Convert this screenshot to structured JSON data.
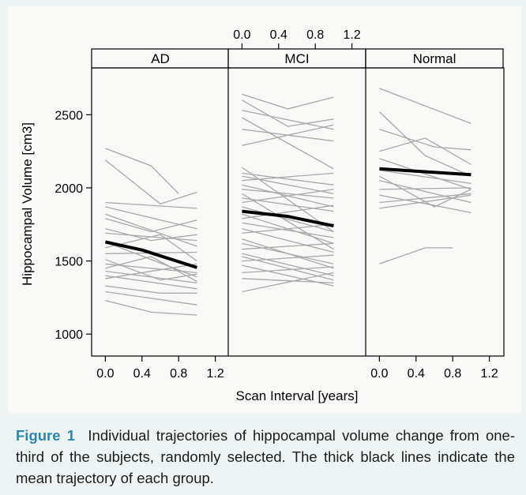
{
  "chart_data": {
    "type": "line",
    "layout": "trellis",
    "xlabel": "Scan Interval [years]",
    "ylabel": "Hippocampal Volume [cm3]",
    "xlim": [
      -0.15,
      1.35
    ],
    "ylim": [
      850,
      2820
    ],
    "x_ticks": [
      "0.0",
      "0.4",
      "0.8",
      "1.2"
    ],
    "y_ticks": [
      "1000",
      "1500",
      "2000",
      "2500"
    ],
    "x_tick_values": [
      0,
      0.4,
      0.8,
      1.2
    ],
    "y_tick_values": [
      1000,
      1500,
      2000,
      2500
    ],
    "colors": {
      "individual": "#a8a8a8",
      "mean": "#000000"
    },
    "panels": [
      {
        "name": "AD",
        "mean": [
          [
            0,
            1630
          ],
          [
            0.4,
            1575
          ],
          [
            1.0,
            1455
          ]
        ],
        "series": [
          [
            [
              0,
              2270
            ],
            [
              0.5,
              2150
            ],
            [
              0.8,
              1960
            ]
          ],
          [
            [
              0,
              2190
            ],
            [
              0.6,
              1890
            ],
            [
              1.0,
              1970
            ]
          ],
          [
            [
              0,
              1900
            ],
            [
              1.0,
              1860
            ]
          ],
          [
            [
              0,
              1870
            ],
            [
              1.0,
              1720
            ]
          ],
          [
            [
              0,
              1820
            ],
            [
              1.0,
              1600
            ]
          ],
          [
            [
              0,
              1790
            ],
            [
              0.5,
              1700
            ],
            [
              1.0,
              1780
            ]
          ],
          [
            [
              0,
              1720
            ],
            [
              0.5,
              1640
            ],
            [
              1.0,
              1680
            ]
          ],
          [
            [
              0,
              1690
            ],
            [
              1.0,
              1640
            ]
          ],
          [
            [
              0,
              1630
            ],
            [
              1.0,
              1390
            ]
          ],
          [
            [
              0,
              1590
            ],
            [
              0.6,
              1680
            ],
            [
              1.0,
              1500
            ]
          ],
          [
            [
              0,
              1550
            ],
            [
              1.0,
              1560
            ]
          ],
          [
            [
              0,
              1510
            ],
            [
              0.6,
              1370
            ],
            [
              1.0,
              1410
            ]
          ],
          [
            [
              0,
              1480
            ],
            [
              1.0,
              1420
            ]
          ],
          [
            [
              0,
              1450
            ],
            [
              0.5,
              1530
            ],
            [
              1.0,
              1360
            ]
          ],
          [
            [
              0,
              1430
            ],
            [
              1.0,
              1350
            ]
          ],
          [
            [
              0,
              1400
            ],
            [
              1.0,
              1310
            ]
          ],
          [
            [
              0,
              1380
            ],
            [
              1.0,
              1480
            ]
          ],
          [
            [
              0,
              1330
            ],
            [
              0.6,
              1280
            ],
            [
              1.0,
              1280
            ]
          ],
          [
            [
              0,
              1290
            ],
            [
              1.0,
              1200
            ]
          ],
          [
            [
              0,
              1230
            ],
            [
              0.5,
              1150
            ],
            [
              1.0,
              1130
            ]
          ]
        ]
      },
      {
        "name": "MCI",
        "mean": [
          [
            0,
            1840
          ],
          [
            0.5,
            1805
          ],
          [
            1.0,
            1740
          ]
        ],
        "series": [
          [
            [
              0,
              2640
            ],
            [
              0.5,
              2540
            ],
            [
              1.0,
              2620
            ]
          ],
          [
            [
              0,
              2600
            ],
            [
              0.5,
              2420
            ],
            [
              1.0,
              2470
            ]
          ],
          [
            [
              0,
              2530
            ],
            [
              1.0,
              2400
            ]
          ],
          [
            [
              0,
              2480
            ],
            [
              1.0,
              2130
            ]
          ],
          [
            [
              0,
              2400
            ],
            [
              1.0,
              2320
            ]
          ],
          [
            [
              0,
              2290
            ],
            [
              1.0,
              2430
            ]
          ],
          [
            [
              0,
              2140
            ],
            [
              1.0,
              1700
            ]
          ],
          [
            [
              0,
              2100
            ],
            [
              1.0,
              2020
            ]
          ],
          [
            [
              0,
              2080
            ],
            [
              1.0,
              1960
            ]
          ],
          [
            [
              0,
              2050
            ],
            [
              1.0,
              2100
            ]
          ],
          [
            [
              0,
              2020
            ],
            [
              1.0,
              1870
            ]
          ],
          [
            [
              0,
              1990
            ],
            [
              1.0,
              1930
            ]
          ],
          [
            [
              0,
              1960
            ],
            [
              1.0,
              1580
            ]
          ],
          [
            [
              0,
              1930
            ],
            [
              1.0,
              1840
            ]
          ],
          [
            [
              0,
              1900
            ],
            [
              1.0,
              1990
            ]
          ],
          [
            [
              0,
              1870
            ],
            [
              1.0,
              1700
            ]
          ],
          [
            [
              0,
              1820
            ],
            [
              1.0,
              1620
            ]
          ],
          [
            [
              0,
              1790
            ],
            [
              1.0,
              1880
            ]
          ],
          [
            [
              0,
              1760
            ],
            [
              1.0,
              1660
            ]
          ],
          [
            [
              0,
              1720
            ],
            [
              1.0,
              1560
            ]
          ],
          [
            [
              0,
              1690
            ],
            [
              1.0,
              1750
            ]
          ],
          [
            [
              0,
              1650
            ],
            [
              1.0,
              1450
            ]
          ],
          [
            [
              0,
              1620
            ],
            [
              1.0,
              1480
            ]
          ],
          [
            [
              0,
              1580
            ],
            [
              1.0,
              1620
            ]
          ],
          [
            [
              0,
              1550
            ],
            [
              1.0,
              1400
            ]
          ],
          [
            [
              0,
              1530
            ],
            [
              1.0,
              1370
            ]
          ],
          [
            [
              0,
              1500
            ],
            [
              1.0,
              1540
            ]
          ],
          [
            [
              0,
              1470
            ],
            [
              1.0,
              1330
            ]
          ],
          [
            [
              0,
              1420
            ],
            [
              1.0,
              1460
            ]
          ],
          [
            [
              0,
              1380
            ],
            [
              1.0,
              1350
            ]
          ],
          [
            [
              0,
              1290
            ],
            [
              1.0,
              1420
            ]
          ]
        ]
      },
      {
        "name": "Normal",
        "mean": [
          [
            0,
            2130
          ],
          [
            1.0,
            2090
          ]
        ],
        "series": [
          [
            [
              0,
              2680
            ],
            [
              1.0,
              2440
            ]
          ],
          [
            [
              0,
              2520
            ],
            [
              0.5,
              2220
            ],
            [
              1.0,
              2080
            ]
          ],
          [
            [
              0,
              2400
            ],
            [
              0.6,
              2280
            ],
            [
              1.0,
              2260
            ]
          ],
          [
            [
              0,
              2250
            ],
            [
              0.5,
              2340
            ],
            [
              1.0,
              2160
            ]
          ],
          [
            [
              0,
              2200
            ],
            [
              1.0,
              1990
            ]
          ],
          [
            [
              0,
              2120
            ],
            [
              1.0,
              2030
            ]
          ],
          [
            [
              0,
              2080
            ],
            [
              0.6,
              1870
            ],
            [
              1.0,
              1990
            ]
          ],
          [
            [
              0,
              2050
            ],
            [
              1.0,
              1900
            ]
          ],
          [
            [
              0,
              1990
            ],
            [
              1.0,
              2000
            ]
          ],
          [
            [
              0,
              1950
            ],
            [
              0.6,
              1880
            ],
            [
              1.0,
              1830
            ]
          ],
          [
            [
              0,
              1900
            ],
            [
              1.0,
              1960
            ]
          ],
          [
            [
              0,
              1860
            ],
            [
              1.0,
              1950
            ]
          ],
          [
            [
              0,
              1480
            ],
            [
              0.5,
              1590
            ],
            [
              0.8,
              1590
            ]
          ]
        ]
      }
    ]
  },
  "caption": {
    "label": "Figure 1",
    "text": "Individual trajectories of hippocampal volume change from one-third of the subjects, randomly selected. The thick black lines indicate the mean trajectory of each group."
  }
}
